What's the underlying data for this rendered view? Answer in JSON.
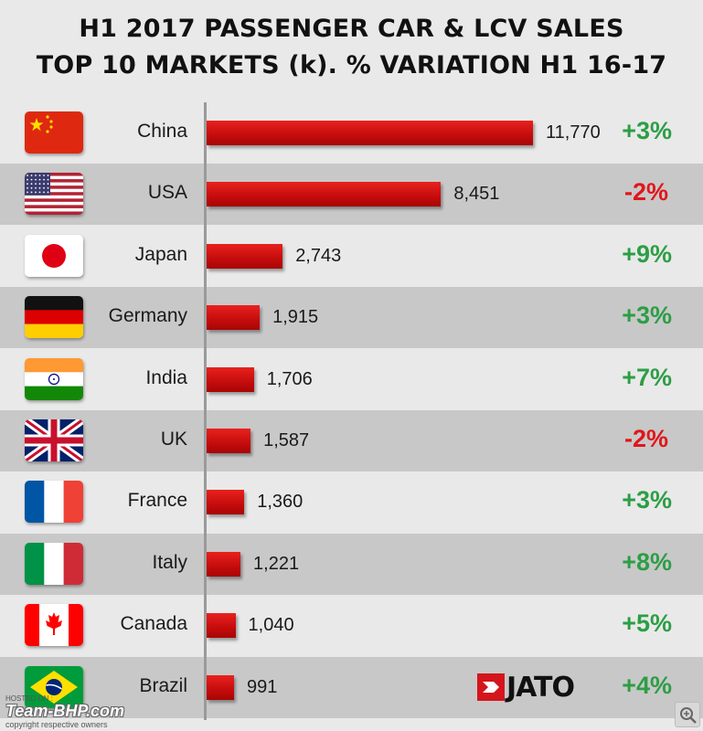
{
  "title_line1": "H1 2017 PASSENGER CAR & LCV SALES",
  "title_line2": "TOP 10 MARKETS (k). % VARIATION  H1 16-17",
  "colors": {
    "bar": "#d0121a",
    "positive": "#2c9e45",
    "negative": "#e0161b"
  },
  "chart_data": {
    "type": "bar",
    "orientation": "horizontal",
    "categories": [
      "China",
      "USA",
      "Japan",
      "Germany",
      "India",
      "UK",
      "France",
      "Italy",
      "Canada",
      "Brazil"
    ],
    "values": [
      11770,
      8451,
      2743,
      1915,
      1706,
      1587,
      1360,
      1221,
      1040,
      991
    ],
    "value_labels": [
      "11,770",
      "8,451",
      "2,743",
      "1,915",
      "1,706",
      "1,587",
      "1,360",
      "1,221",
      "1,040",
      "991"
    ],
    "variation": [
      "+3%",
      "-2%",
      "+9%",
      "+3%",
      "+7%",
      "-2%",
      "+3%",
      "+8%",
      "+5%",
      "+4%"
    ],
    "flags": [
      "china-flag",
      "usa-flag",
      "japan-flag",
      "germany-flag",
      "india-flag",
      "uk-flag",
      "france-flag",
      "italy-flag",
      "canada-flag",
      "brazil-flag"
    ],
    "grid": false
  },
  "logo": {
    "text": "JATO"
  },
  "watermark": {
    "hosted": "HOSTED ON :",
    "brand": "Team-BHP.com",
    "copyright": "copyright respective owners"
  }
}
